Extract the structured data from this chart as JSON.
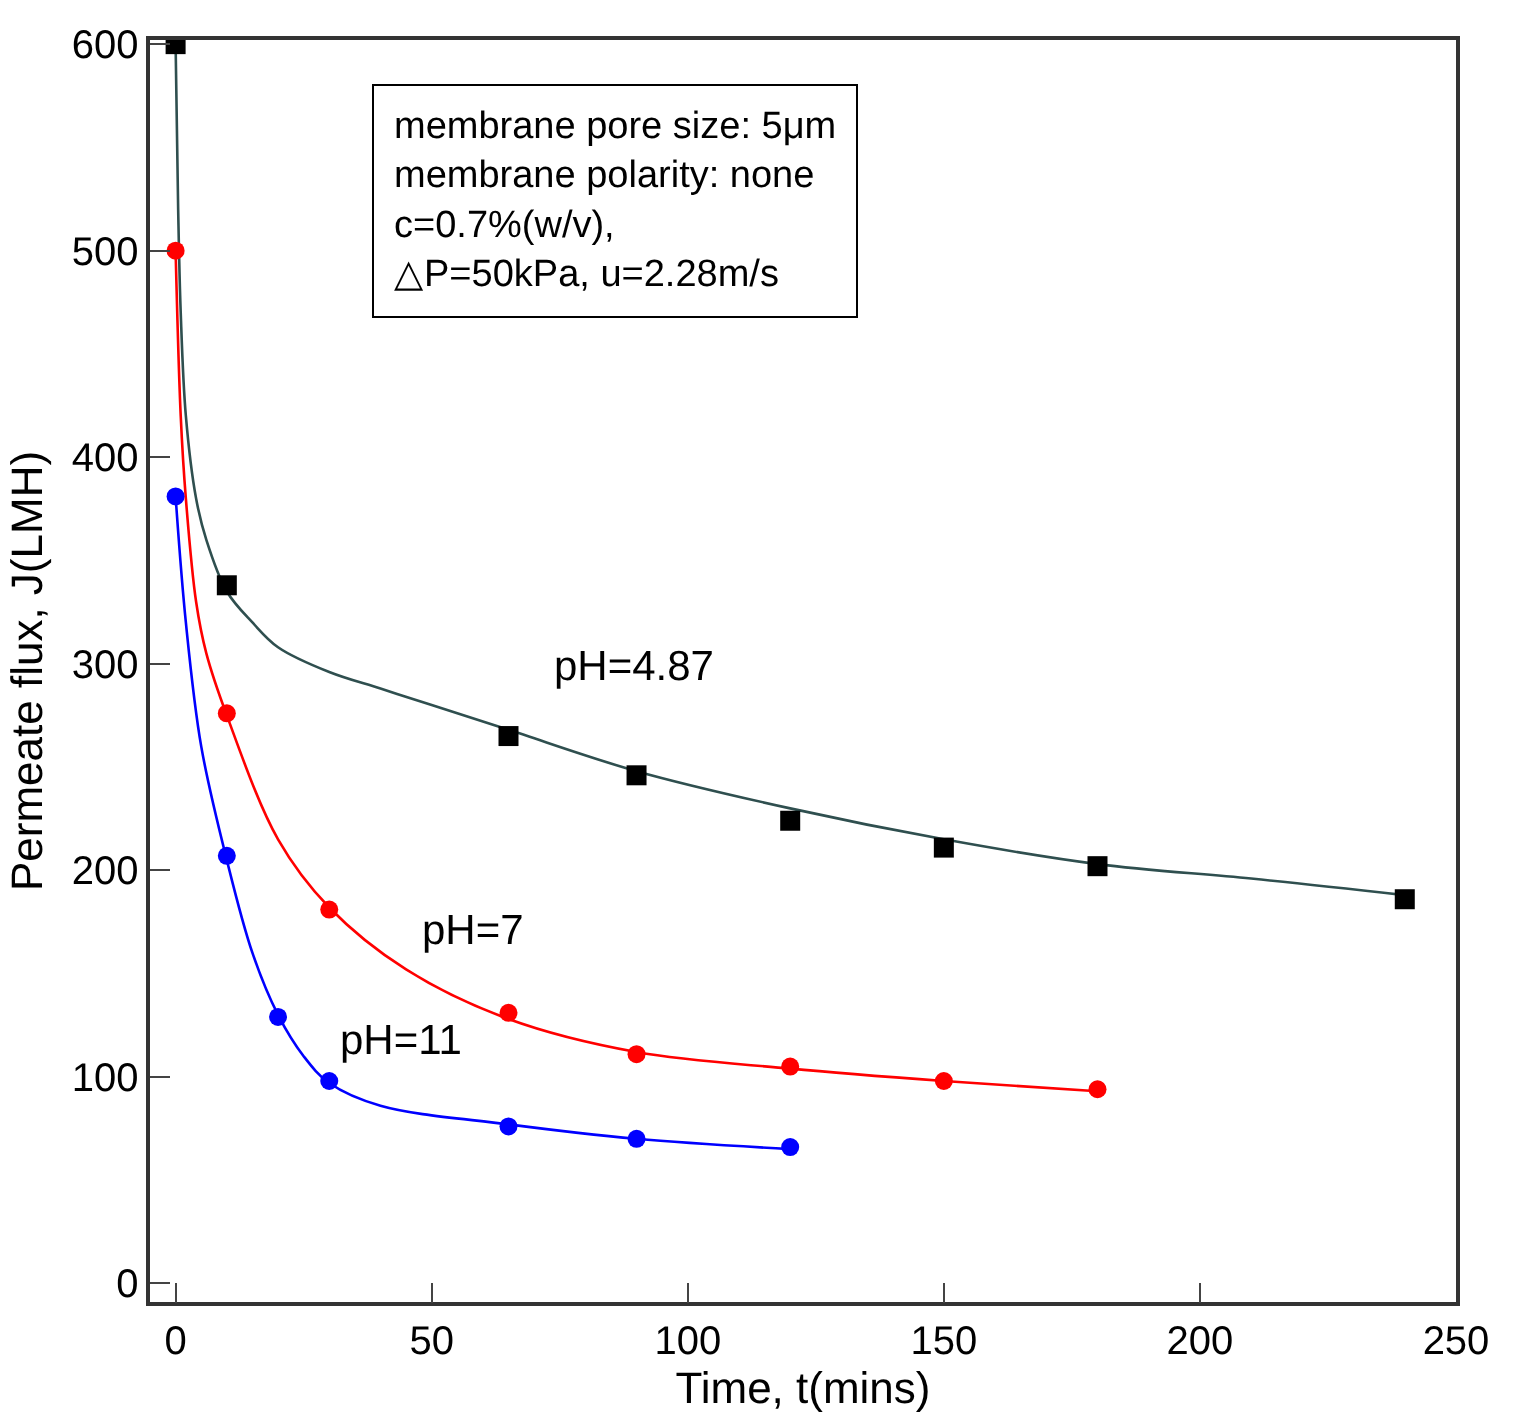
{
  "chart_data": {
    "type": "scatter",
    "xlabel": "Time, t(mins)",
    "ylabel": "Permeate flux, J(LMH)",
    "xlim": [
      -5,
      250
    ],
    "ylim": [
      -9,
      602
    ],
    "xticks": [
      0,
      50,
      100,
      150,
      200,
      250
    ],
    "yticks": [
      0,
      100,
      200,
      300,
      400,
      500,
      600
    ],
    "legend": false,
    "series": [
      {
        "type": "line",
        "color": "#2f4f4f",
        "marker": "none",
        "x": [
          0,
          0.5,
          1,
          2,
          4,
          6,
          10,
          15,
          20,
          30,
          40,
          50,
          65,
          90,
          120,
          150,
          180,
          210,
          240
        ],
        "values": [
          600,
          520,
          470,
          420,
          380,
          360,
          335,
          320,
          308,
          296,
          288,
          280,
          268,
          248,
          230,
          215,
          203,
          196,
          188
        ]
      },
      {
        "type": "line",
        "color": "#ff0000",
        "marker": "none",
        "x": [
          0,
          1,
          2,
          4,
          6,
          10,
          20,
          30,
          45,
          65,
          90,
          120,
          150,
          180
        ],
        "values": [
          500,
          420,
          380,
          330,
          305,
          275,
          215,
          182,
          152,
          128,
          112,
          104,
          98,
          93
        ]
      },
      {
        "type": "line",
        "color": "#0000ff",
        "marker": "none",
        "x": [
          0,
          2,
          5,
          10,
          15,
          20,
          25,
          30,
          40,
          65,
          90,
          120
        ],
        "values": [
          381,
          320,
          260,
          205,
          160,
          130,
          110,
          97,
          86,
          77,
          70,
          65
        ]
      },
      {
        "name": "pH=4.87",
        "color": "#000000",
        "marker": "square",
        "x": [
          0,
          10,
          65,
          90,
          120,
          150,
          180,
          240
        ],
        "values": [
          600,
          338,
          265,
          246,
          224,
          211,
          202,
          186
        ]
      },
      {
        "name": "pH=7",
        "color": "#ff0000",
        "marker": "circle",
        "x": [
          0,
          10,
          30,
          65,
          90,
          120,
          150,
          180
        ],
        "values": [
          500,
          276,
          181,
          131,
          111,
          105,
          98,
          94
        ]
      },
      {
        "name": "pH=11",
        "color": "#0000ff",
        "marker": "circle",
        "x": [
          0,
          10,
          20,
          30,
          65,
          90,
          120
        ],
        "values": [
          381,
          207,
          129,
          98,
          76,
          70,
          66
        ]
      }
    ],
    "annotations": [
      "membrane pore size: 5μm\nmembrane polarity: none\nc=0.7%(w/v),\n△P=50kPa, u=2.28m/s"
    ]
  }
}
